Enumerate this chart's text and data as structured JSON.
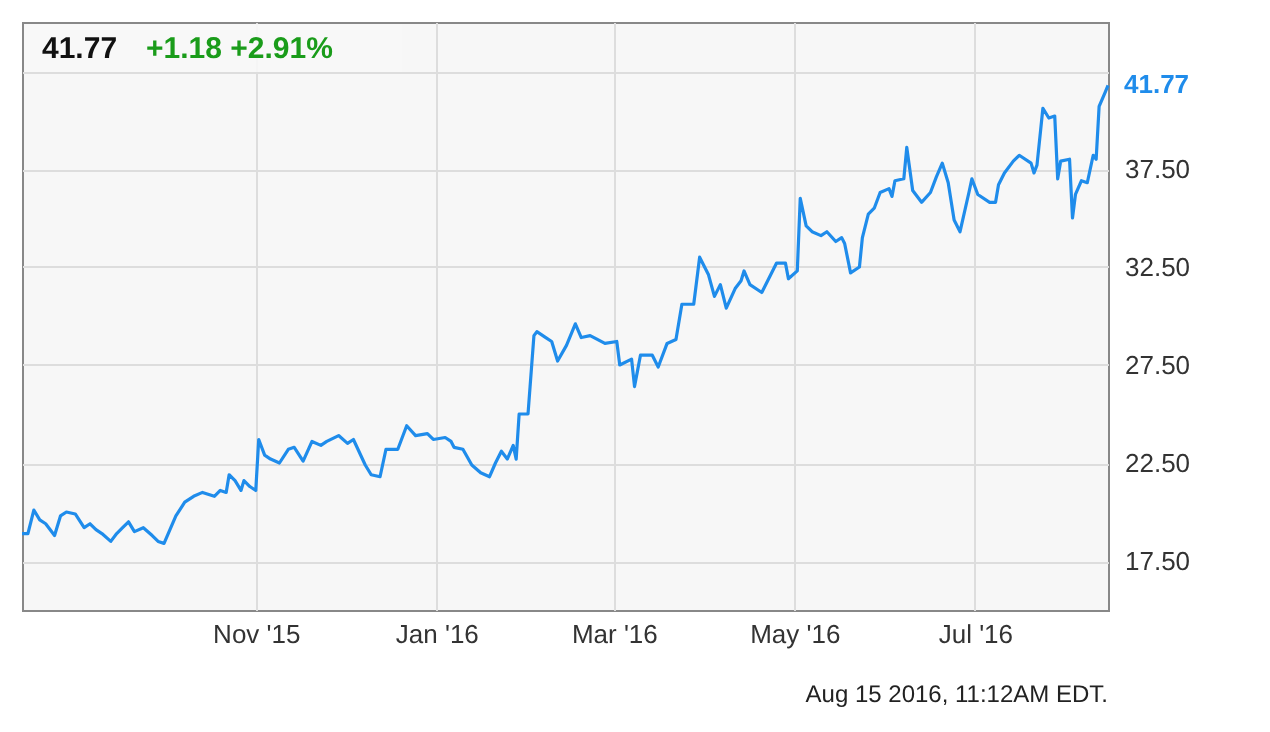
{
  "chart_data": {
    "type": "line",
    "title": "41.77",
    "subtitle": "+1.18  +2.91%",
    "x": [
      "2015-08-14",
      "2015-08-16",
      "2015-08-18",
      "2015-08-20",
      "2015-08-22",
      "2015-08-25",
      "2015-08-27",
      "2015-08-29",
      "2015-09-01",
      "2015-09-04",
      "2015-09-06",
      "2015-09-08",
      "2015-09-10",
      "2015-09-13",
      "2015-09-15",
      "2015-09-17",
      "2015-09-19",
      "2015-09-21",
      "2015-09-24",
      "2015-09-27",
      "2015-09-29",
      "2015-10-01",
      "2015-10-03",
      "2015-10-05",
      "2015-10-08",
      "2015-10-11",
      "2015-10-14",
      "2015-10-18",
      "2015-10-20",
      "2015-10-22",
      "2015-10-23",
      "2015-10-25",
      "2015-10-27",
      "2015-10-28",
      "2015-10-30",
      "2015-11-01",
      "2015-11-02",
      "2015-11-04",
      "2015-11-06",
      "2015-11-09",
      "2015-11-12",
      "2015-11-14",
      "2015-11-17",
      "2015-11-20",
      "2015-11-23",
      "2015-11-25",
      "2015-11-29",
      "2015-12-02",
      "2015-12-04",
      "2015-12-08",
      "2015-12-10",
      "2015-12-13",
      "2015-12-15",
      "2015-12-19",
      "2015-12-22",
      "2015-12-25",
      "2015-12-29",
      "2015-12-31",
      "2016-01-04",
      "2016-01-06",
      "2016-01-07",
      "2016-01-10",
      "2016-01-13",
      "2016-01-16",
      "2016-01-19",
      "2016-01-21",
      "2016-01-23",
      "2016-01-25",
      "2016-01-27",
      "2016-01-28",
      "2016-01-29",
      "2016-02-01",
      "2016-02-03",
      "2016-02-04",
      "2016-02-07",
      "2016-02-09",
      "2016-02-11",
      "2016-02-14",
      "2016-02-17",
      "2016-02-19",
      "2016-02-22",
      "2016-02-27",
      "2016-03-02",
      "2016-03-03",
      "2016-03-07",
      "2016-03-08",
      "2016-03-09",
      "2016-03-10",
      "2016-03-14",
      "2016-03-16",
      "2016-03-19",
      "2016-03-22",
      "2016-03-24",
      "2016-03-28",
      "2016-03-30",
      "2016-04-02",
      "2016-04-04",
      "2016-04-06",
      "2016-04-08",
      "2016-04-11",
      "2016-04-13",
      "2016-04-14",
      "2016-04-16",
      "2016-04-20",
      "2016-04-25",
      "2016-04-28",
      "2016-04-29",
      "2016-05-02",
      "2016-05-03",
      "2016-05-05",
      "2016-05-07",
      "2016-05-10",
      "2016-05-12",
      "2016-05-15",
      "2016-05-17",
      "2016-05-18",
      "2016-05-20",
      "2016-05-23",
      "2016-05-24",
      "2016-05-26",
      "2016-05-28",
      "2016-05-30",
      "2016-06-02",
      "2016-06-03",
      "2016-06-04",
      "2016-06-07",
      "2016-06-08",
      "2016-06-10",
      "2016-06-13",
      "2016-06-16",
      "2016-06-18",
      "2016-06-20",
      "2016-06-22",
      "2016-06-24",
      "2016-06-26",
      "2016-06-29",
      "2016-06-30",
      "2016-07-02",
      "2016-07-06",
      "2016-07-08",
      "2016-07-09",
      "2016-07-11",
      "2016-07-14",
      "2016-07-16",
      "2016-07-20",
      "2016-07-21",
      "2016-07-22",
      "2016-07-24",
      "2016-07-26",
      "2016-07-28",
      "2016-07-29",
      "2016-07-30",
      "2016-08-02",
      "2016-08-03",
      "2016-08-04",
      "2016-08-06",
      "2016-08-08",
      "2016-08-10",
      "2016-08-11",
      "2016-08-12",
      "2016-08-14",
      "2016-08-15"
    ],
    "series": [
      {
        "color": "#1f8ceb",
        "values": [
          18.9,
          18.9,
          20.1,
          19.6,
          19.4,
          18.8,
          19.8,
          20.0,
          19.9,
          19.2,
          19.4,
          19.1,
          18.9,
          18.5,
          18.9,
          19.2,
          19.5,
          19.0,
          19.2,
          18.8,
          18.5,
          18.4,
          19.1,
          19.8,
          20.5,
          20.8,
          21.0,
          20.8,
          21.1,
          21.0,
          21.9,
          21.6,
          21.1,
          21.6,
          21.3,
          21.1,
          23.7,
          22.9,
          22.7,
          22.5,
          23.2,
          23.3,
          22.6,
          23.6,
          23.4,
          23.6,
          23.9,
          23.5,
          23.7,
          22.4,
          21.9,
          21.8,
          23.2,
          23.2,
          24.4,
          23.9,
          24.0,
          23.7,
          23.8,
          23.6,
          23.3,
          23.2,
          22.4,
          22.0,
          21.8,
          22.5,
          23.1,
          22.7,
          23.4,
          22.7,
          25.0,
          25.0,
          29.0,
          29.2,
          28.9,
          28.7,
          27.7,
          28.5,
          29.6,
          28.9,
          29.0,
          28.6,
          28.7,
          27.5,
          27.8,
          26.4,
          27.2,
          28.0,
          28.0,
          27.4,
          28.6,
          28.8,
          30.6,
          30.6,
          33.0,
          32.1,
          31.0,
          31.6,
          30.4,
          31.4,
          31.8,
          32.3,
          31.6,
          31.2,
          32.7,
          32.7,
          31.9,
          32.3,
          36.0,
          34.6,
          34.3,
          34.1,
          34.3,
          33.8,
          34.0,
          33.7,
          32.2,
          32.5,
          34.0,
          35.2,
          35.5,
          36.3,
          36.5,
          36.1,
          36.9,
          37.0,
          38.6,
          36.4,
          35.8,
          36.3,
          37.1,
          37.8,
          36.8,
          34.9,
          34.3,
          36.3,
          37.0,
          36.2,
          35.8,
          35.8,
          36.7,
          37.3,
          37.9,
          38.2,
          37.8,
          37.3,
          37.7,
          40.6,
          40.1,
          40.2,
          37.0,
          37.9,
          38.0,
          35.0,
          36.2,
          36.9,
          36.8,
          38.2,
          38.0,
          40.7,
          41.4,
          41.77
        ]
      }
    ],
    "xlim": [
      "2015-08-14",
      "2016-08-15"
    ],
    "xticks": [
      {
        "value": "2015-11-01",
        "label": "Nov '15"
      },
      {
        "value": "2016-01-01",
        "label": "Jan '16"
      },
      {
        "value": "2016-03-01",
        "label": "Mar '16"
      },
      {
        "value": "2016-05-01",
        "label": "May '16"
      },
      {
        "value": "2016-07-01",
        "label": "Jul '16"
      }
    ],
    "ylim": [
      15,
      45
    ],
    "yticks": [
      {
        "value": 17.5,
        "label": "17.50"
      },
      {
        "value": 22.5,
        "label": "22.50"
      },
      {
        "value": 27.5,
        "label": "27.50"
      },
      {
        "value": 32.5,
        "label": "32.50"
      },
      {
        "value": 37.5,
        "label": "37.50"
      },
      {
        "value": 42.5,
        "label": null
      }
    ],
    "grid": true,
    "marker": "none",
    "line_style": "solid",
    "annotations": [
      {
        "text": "41.77",
        "x": "2016-08-15",
        "y": 41.77
      },
      "Aug 15 2016, 11:12AM EDT."
    ]
  }
}
